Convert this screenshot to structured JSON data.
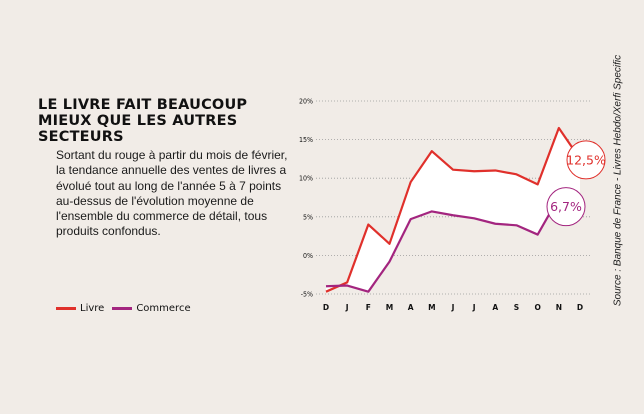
{
  "title_lines": [
    "LE LIVRE FAIT BEAUCOUP",
    "MIEUX QUE LES AUTRES",
    "SECTEURS"
  ],
  "description": "Sortant du rouge à partir du mois de février, la tendance annuelle des ventes de livres a évolué tout au long de l'année 5 à 7 points au-dessus de l'évolution moyenne de l'ensemble du commerce de détail, tous produits confondus.",
  "source": "Source : Banque de France - Livres Hebdo/Xerfi Specific",
  "colors": {
    "livre": "#e0302b",
    "commerce": "#a3257f",
    "grid": "#9a9a9a",
    "background": "#f1ece7"
  },
  "chart_data": {
    "type": "line",
    "title": "LE LIVRE FAIT BEAUCOUP MIEUX QUE LES AUTRES SECTEURS",
    "x": [
      "D",
      "J",
      "F",
      "M",
      "A",
      "M",
      "J",
      "J",
      "A",
      "S",
      "O",
      "N",
      "D"
    ],
    "ylim": [
      -5,
      20
    ],
    "yticks": [
      -5,
      0,
      5,
      10,
      15,
      20
    ],
    "ytick_labels": [
      "-5%",
      "0%",
      "5%",
      "10%",
      "15%",
      "20%"
    ],
    "grid": "horizontal dotted",
    "legend": "bottom-left",
    "series": [
      {
        "name": "Livre",
        "color": "#e0302b",
        "values": [
          -4.7,
          -3.5,
          4.0,
          1.5,
          9.5,
          13.5,
          11.1,
          10.9,
          11.0,
          10.5,
          9.2,
          16.5,
          12.5
        ]
      },
      {
        "name": "Commerce",
        "color": "#a3257f",
        "values": [
          -4.0,
          -3.9,
          -4.7,
          -0.8,
          4.7,
          5.7,
          5.2,
          4.8,
          4.1,
          3.9,
          2.7,
          7.5,
          6.7
        ]
      }
    ],
    "annotations": [
      {
        "series": "Livre",
        "label": "12,5%"
      },
      {
        "series": "Commerce",
        "label": "6,7%"
      }
    ]
  }
}
